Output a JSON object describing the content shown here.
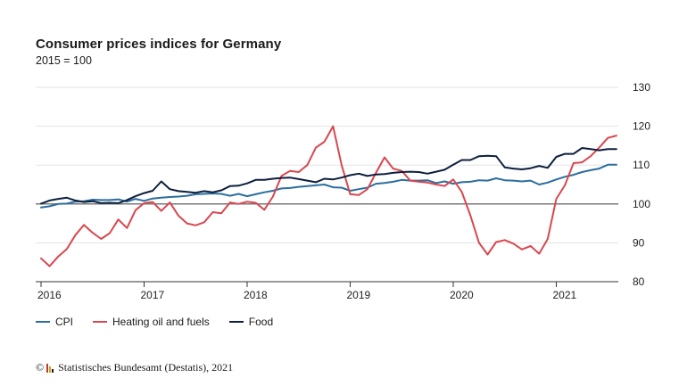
{
  "chart_data": {
    "type": "line",
    "title": "Consumer prices indices for Germany",
    "subtitle": "2015 = 100",
    "x_start": "2016-01",
    "x_end": "2021-08",
    "x_ticks": [
      "2016",
      "2017",
      "2018",
      "2019",
      "2020",
      "2021"
    ],
    "ylim": [
      80,
      130
    ],
    "y_ticks": [
      "80",
      "90",
      "100",
      "110",
      "120",
      "130"
    ],
    "reference_line": 100,
    "grid": "horizontal",
    "legend_position": "bottom",
    "series": [
      {
        "name": "CPI",
        "color": "#2b6e9e",
        "values": [
          99.1,
          99.4,
          100.0,
          100.1,
          100.6,
          100.7,
          101.1,
          101.0,
          101.0,
          101.2,
          100.6,
          101.3,
          100.8,
          101.4,
          101.6,
          101.8,
          101.9,
          102.1,
          102.5,
          102.6,
          102.7,
          102.6,
          102.1,
          102.6,
          102.0,
          102.5,
          103.0,
          103.4,
          104.0,
          104.1,
          104.4,
          104.6,
          104.8,
          105.0,
          104.3,
          104.2,
          103.4,
          103.8,
          104.2,
          105.2,
          105.4,
          105.7,
          106.2,
          106.0,
          106.0,
          106.1,
          105.4,
          105.8,
          105.2,
          105.6,
          105.7,
          106.1,
          106.0,
          106.6,
          106.1,
          106.0,
          105.8,
          106.0,
          105.0,
          105.5,
          106.3,
          107.0,
          107.5,
          108.2,
          108.7,
          109.1,
          110.1,
          110.1
        ]
      },
      {
        "name": "Heating oil and fuels",
        "color": "#d9474f",
        "values": [
          86.0,
          84.0,
          86.5,
          88.4,
          92.0,
          94.6,
          92.6,
          91.0,
          92.5,
          96.0,
          93.8,
          98.4,
          100.2,
          100.5,
          98.2,
          100.4,
          97.0,
          95.0,
          94.5,
          95.3,
          97.9,
          97.6,
          100.4,
          100.0,
          100.6,
          100.3,
          98.5,
          101.9,
          107.2,
          108.5,
          108.2,
          110.0,
          114.5,
          116.0,
          120.0,
          110.0,
          102.5,
          102.3,
          103.8,
          108.0,
          112.0,
          109.1,
          108.5,
          106.0,
          105.7,
          105.5,
          105.0,
          104.6,
          106.3,
          103.1,
          97.0,
          90.0,
          87.0,
          90.2,
          90.7,
          89.8,
          88.3,
          89.2,
          87.2,
          91.0,
          101.3,
          104.8,
          110.5,
          110.7,
          112.3,
          114.5,
          117.0,
          117.6
        ]
      },
      {
        "name": "Food",
        "color": "#0d1f3d",
        "values": [
          100.1,
          100.9,
          101.3,
          101.6,
          100.9,
          100.5,
          100.7,
          100.2,
          100.3,
          100.2,
          101.0,
          102.0,
          102.8,
          103.4,
          105.8,
          103.8,
          103.3,
          103.1,
          102.9,
          103.3,
          103.0,
          103.5,
          104.6,
          104.7,
          105.3,
          106.2,
          106.2,
          106.5,
          106.7,
          106.8,
          106.4,
          106.0,
          105.6,
          106.5,
          106.3,
          106.8,
          107.4,
          107.8,
          107.2,
          107.6,
          107.7,
          108.0,
          108.2,
          108.3,
          108.2,
          107.8,
          108.3,
          108.8,
          110.1,
          111.3,
          111.3,
          112.3,
          112.4,
          112.3,
          109.4,
          109.1,
          108.9,
          109.2,
          109.8,
          109.3,
          112.1,
          112.9,
          112.9,
          114.4,
          114.1,
          113.8,
          114.1,
          114.1
        ]
      }
    ]
  },
  "source": {
    "copyright_symbol": "©",
    "text": "Statistisches Bundesamt (Destatis), 2021",
    "logo_colors": [
      "#c0392b",
      "#d4a017",
      "#1a1a1a"
    ]
  }
}
